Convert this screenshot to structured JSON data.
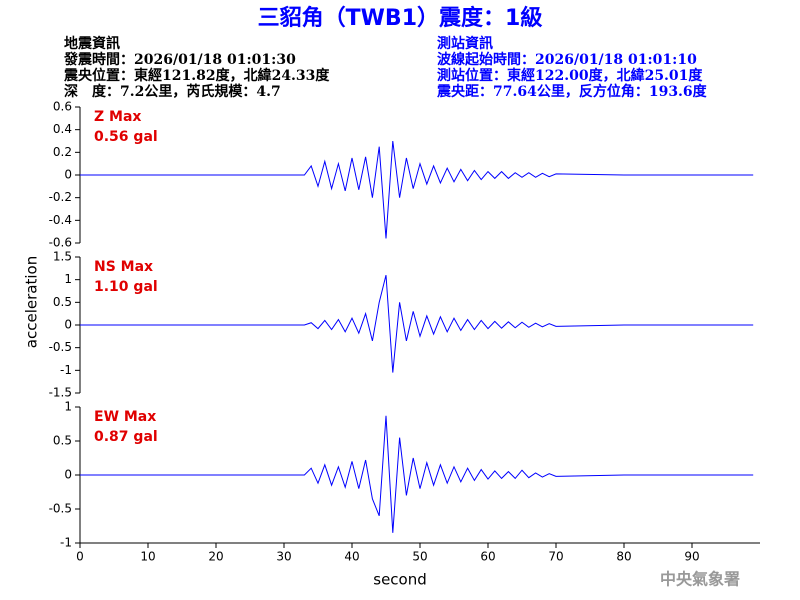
{
  "header": {
    "title": "三貂角（TWB1）震度：1級",
    "event_info": [
      "地震資訊",
      "發震時間：2026/01/18 01:01:30",
      "震央位置：東經121.82度，北緯24.33度",
      "深　度：7.2公里，芮氏規模：4.7"
    ],
    "station_info": [
      "測站資訊",
      "波線起始時間：2026/01/18 01:01:10",
      "測站位置：東經122.00度，北緯25.01度",
      "震央距：77.64公里，反方位角：193.6度"
    ]
  },
  "ylabel": "acceleration",
  "xlabel": "second",
  "footer": "中央氣象署",
  "chart_data": [
    {
      "type": "line",
      "annotations": [
        "Z Max",
        "0.56 gal"
      ],
      "color": "#0000ff",
      "x": [
        0,
        33,
        34,
        35,
        36,
        37,
        38,
        39,
        40,
        41,
        42,
        43,
        44,
        45,
        46,
        47,
        48,
        49,
        50,
        51,
        52,
        53,
        54,
        55,
        56,
        57,
        58,
        59,
        60,
        61,
        62,
        63,
        64,
        65,
        66,
        67,
        68,
        69,
        70,
        80,
        99
      ],
      "values": [
        0,
        0,
        0.08,
        -0.1,
        0.12,
        -0.12,
        0.1,
        -0.14,
        0.15,
        -0.13,
        0.16,
        -0.2,
        0.25,
        -0.56,
        0.3,
        -0.2,
        0.15,
        -0.12,
        0.1,
        -0.08,
        0.08,
        -0.07,
        0.06,
        -0.06,
        0.05,
        -0.05,
        0.04,
        -0.04,
        0.03,
        -0.03,
        0.03,
        -0.03,
        0.02,
        -0.02,
        0.02,
        -0.02,
        0.015,
        -0.015,
        0.01,
        0,
        0
      ],
      "xlim": [
        0,
        100
      ],
      "ylim": [
        -0.6,
        0.6
      ],
      "yticks": [
        -0.6,
        -0.4,
        -0.2,
        0,
        0.2,
        0.4,
        0.6
      ]
    },
    {
      "type": "line",
      "annotations": [
        "NS Max",
        "1.10 gal"
      ],
      "color": "#0000ff",
      "x": [
        0,
        33,
        34,
        35,
        36,
        37,
        38,
        39,
        40,
        41,
        42,
        43,
        44,
        45,
        46,
        47,
        48,
        49,
        50,
        51,
        52,
        53,
        54,
        55,
        56,
        57,
        58,
        59,
        60,
        61,
        62,
        63,
        64,
        65,
        66,
        67,
        68,
        69,
        70,
        80,
        99
      ],
      "values": [
        0,
        0,
        0.05,
        -0.08,
        0.1,
        -0.1,
        0.12,
        -0.15,
        0.15,
        -0.18,
        0.25,
        -0.35,
        0.5,
        1.1,
        -1.05,
        0.5,
        -0.35,
        0.3,
        -0.25,
        0.2,
        -0.2,
        0.18,
        -0.15,
        0.15,
        -0.12,
        0.12,
        -0.1,
        0.1,
        -0.08,
        0.08,
        -0.07,
        0.07,
        -0.06,
        0.06,
        -0.05,
        0.04,
        -0.04,
        0.03,
        -0.03,
        0,
        0
      ],
      "xlim": [
        0,
        100
      ],
      "ylim": [
        -1.5,
        1.5
      ],
      "yticks": [
        -1.5,
        -1,
        -0.5,
        0,
        0.5,
        1,
        1.5
      ]
    },
    {
      "type": "line",
      "annotations": [
        "EW Max",
        "0.87 gal"
      ],
      "color": "#0000ff",
      "x": [
        0,
        33,
        34,
        35,
        36,
        37,
        38,
        39,
        40,
        41,
        42,
        43,
        44,
        45,
        46,
        47,
        48,
        49,
        50,
        51,
        52,
        53,
        54,
        55,
        56,
        57,
        58,
        59,
        60,
        61,
        62,
        63,
        64,
        65,
        66,
        67,
        68,
        69,
        70,
        80,
        99
      ],
      "values": [
        0,
        0,
        0.1,
        -0.12,
        0.15,
        -0.15,
        0.12,
        -0.18,
        0.2,
        -0.2,
        0.22,
        -0.35,
        -0.6,
        0.87,
        -0.85,
        0.55,
        -0.3,
        0.25,
        -0.2,
        0.18,
        -0.15,
        0.15,
        -0.12,
        0.12,
        -0.1,
        0.1,
        -0.08,
        0.08,
        -0.06,
        0.06,
        -0.05,
        0.05,
        -0.05,
        0.07,
        -0.04,
        0.03,
        -0.03,
        0.02,
        -0.02,
        0,
        0
      ],
      "xlim": [
        0,
        100
      ],
      "ylim": [
        -1,
        1
      ],
      "yticks": [
        -1,
        -0.5,
        0,
        0.5,
        1
      ],
      "xticks": [
        0,
        10,
        20,
        30,
        40,
        50,
        60,
        70,
        80,
        90
      ]
    }
  ]
}
